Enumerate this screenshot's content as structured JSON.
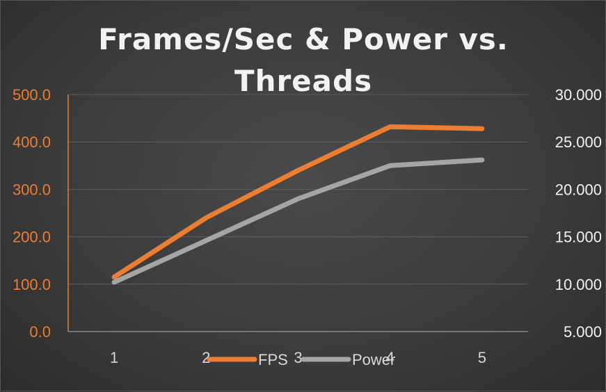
{
  "chart_data": {
    "type": "line",
    "title_lines": [
      "Frames/Sec & Power vs.",
      "Threads"
    ],
    "categories": [
      "1",
      "2",
      "3",
      "4",
      "5"
    ],
    "y_left": {
      "min": 0,
      "max": 500,
      "ticks": [
        "0.0",
        "100.0",
        "200.0",
        "300.0",
        "400.0",
        "500.0"
      ]
    },
    "y_right": {
      "min": 5,
      "max": 30,
      "ticks": [
        "5.000",
        "10.000",
        "15.000",
        "20.000",
        "25.000",
        "30.000"
      ]
    },
    "series": [
      {
        "name": "FPS",
        "axis": "left",
        "color": "#ed7d31",
        "values": [
          115,
          240,
          340,
          432,
          428
        ]
      },
      {
        "name": "Power",
        "axis": "right",
        "color": "#a5a5a5",
        "values": [
          10.2,
          14.6,
          19.0,
          22.5,
          23.1
        ]
      }
    ],
    "grid": true,
    "legend_position": "bottom"
  }
}
